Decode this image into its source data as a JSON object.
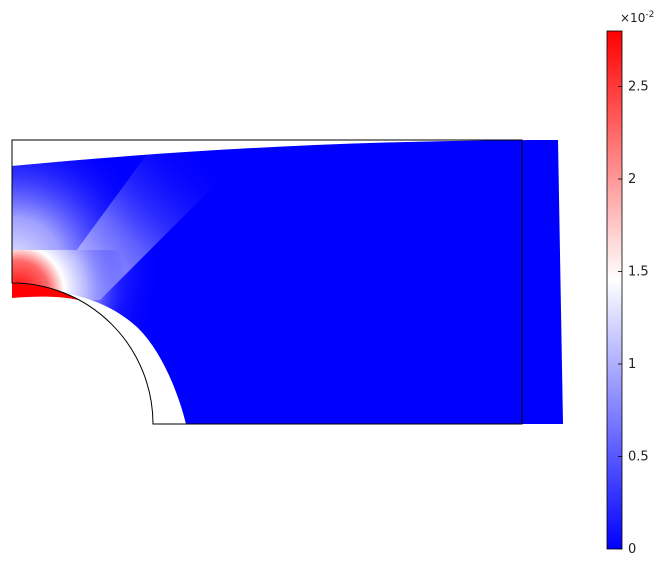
{
  "colorbar": {
    "multiplier_base": "×10",
    "multiplier_exp": "-2",
    "min_value": 0,
    "max_value": 2.8,
    "ticks": [
      {
        "value": 0,
        "label": "0"
      },
      {
        "value": 0.5,
        "label": "0.5"
      },
      {
        "value": 1,
        "label": "1"
      },
      {
        "value": 1.5,
        "label": "1.5"
      },
      {
        "value": 2,
        "label": "2"
      },
      {
        "value": 2.5,
        "label": "2.5"
      }
    ],
    "colors": {
      "low": "#0000ff",
      "mid": "#ffffff",
      "high": "#ff0000"
    }
  },
  "field": {
    "background_color": "#0000ff",
    "peak_color": "#ff0000",
    "outline_color": "#000000"
  }
}
